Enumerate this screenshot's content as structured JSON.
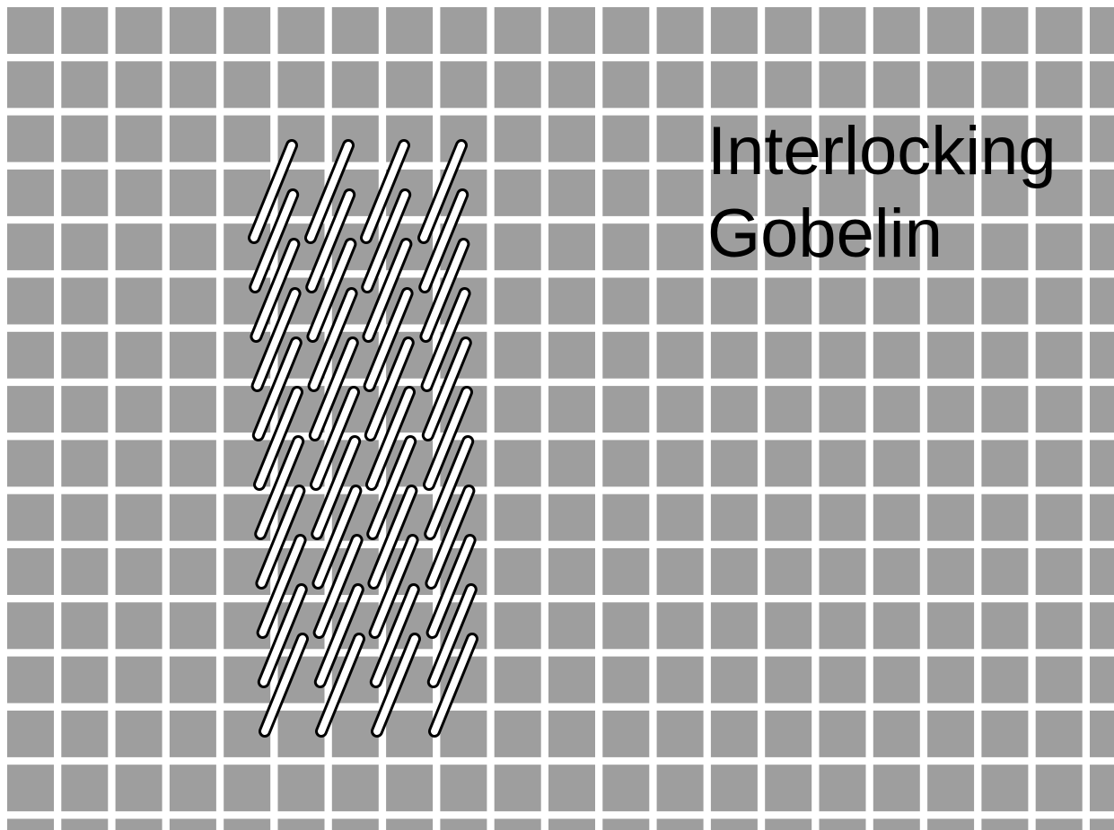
{
  "diagram": {
    "title_lines": [
      "Interlocking",
      "Gobelin"
    ],
    "canvas_color": "#9e9e9e",
    "grid_line_color": "#ffffff",
    "stitch_fill": "#ffffff",
    "stitch_outline": "#000000",
    "stitch_name": "Interlocking Gobelin",
    "stitch_columns": 4,
    "stitch_rows": 11
  }
}
